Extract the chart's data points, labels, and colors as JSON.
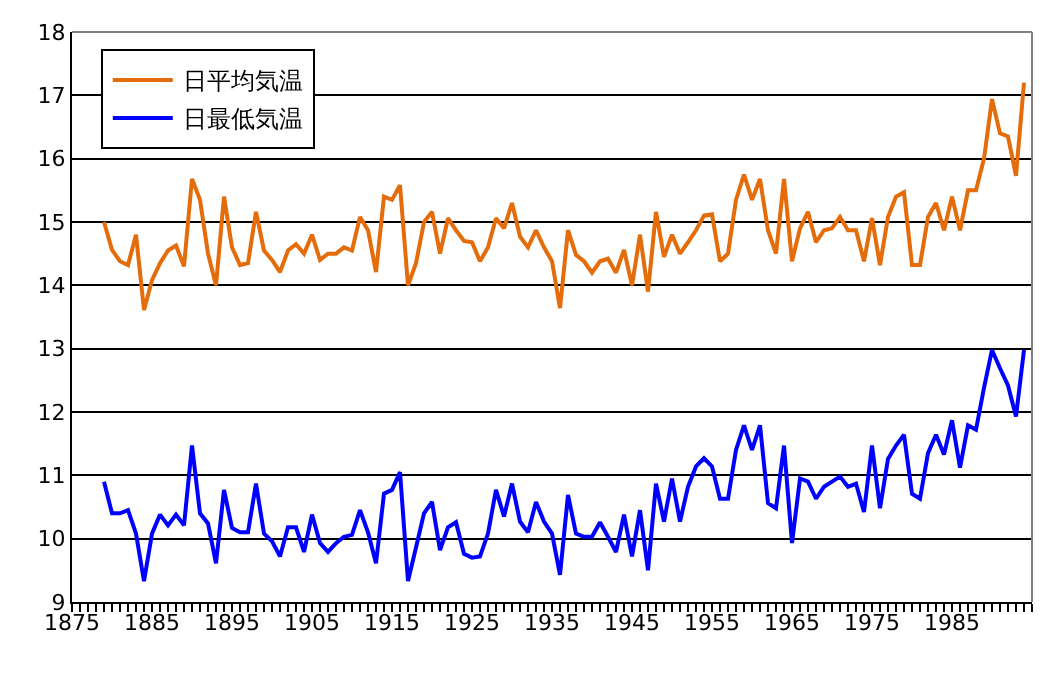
{
  "chart_data": {
    "type": "line",
    "x": [
      1879,
      1880,
      1881,
      1882,
      1883,
      1884,
      1885,
      1886,
      1887,
      1888,
      1889,
      1890,
      1891,
      1892,
      1893,
      1894,
      1895,
      1896,
      1897,
      1898,
      1899,
      1900,
      1901,
      1902,
      1903,
      1904,
      1905,
      1906,
      1907,
      1908,
      1909,
      1910,
      1911,
      1912,
      1913,
      1914,
      1915,
      1916,
      1917,
      1918,
      1919,
      1920,
      1921,
      1922,
      1923,
      1924,
      1925,
      1926,
      1927,
      1928,
      1929,
      1930,
      1931,
      1932,
      1933,
      1934,
      1935,
      1936,
      1937,
      1938,
      1939,
      1940,
      1941,
      1942,
      1943,
      1944,
      1945,
      1946,
      1947,
      1948,
      1949,
      1950,
      1951,
      1952,
      1953,
      1954,
      1955,
      1956,
      1957,
      1958,
      1959,
      1960,
      1961,
      1962,
      1963,
      1964,
      1965,
      1966,
      1967,
      1968,
      1969,
      1970,
      1971,
      1972,
      1973,
      1974,
      1975,
      1976,
      1977,
      1978,
      1979,
      1980,
      1981,
      1982,
      1983,
      1984,
      1985,
      1986,
      1987,
      1988,
      1989,
      1990,
      1991,
      1992,
      1993,
      1994
    ],
    "series": [
      {
        "name": "日平均気温",
        "color": "#e46c0a",
        "values": [
          15.0,
          14.56,
          14.38,
          14.32,
          14.8,
          13.61,
          14.08,
          14.35,
          14.55,
          14.63,
          14.3,
          15.68,
          15.35,
          14.5,
          14.0,
          15.4,
          14.6,
          14.32,
          14.35,
          15.16,
          14.55,
          14.4,
          14.21,
          14.55,
          14.65,
          14.5,
          14.8,
          14.4,
          14.5,
          14.5,
          14.6,
          14.55,
          15.08,
          14.87,
          14.21,
          15.4,
          15.35,
          15.58,
          14.0,
          14.35,
          15.0,
          15.16,
          14.5,
          15.06,
          14.87,
          14.7,
          14.68,
          14.38,
          14.6,
          15.06,
          14.9,
          15.3,
          14.77,
          14.6,
          14.87,
          14.6,
          14.38,
          13.64,
          14.87,
          14.48,
          14.38,
          14.2,
          14.38,
          14.42,
          14.2,
          14.56,
          14.0,
          14.8,
          13.9,
          15.16,
          14.45,
          14.8,
          14.5,
          14.68,
          14.87,
          15.1,
          15.12,
          14.38,
          14.5,
          15.35,
          15.75,
          15.35,
          15.68,
          14.87,
          14.5,
          15.68,
          14.38,
          14.9,
          15.16,
          14.68,
          14.87,
          14.9,
          15.08,
          14.87,
          14.87,
          14.38,
          15.06,
          14.32,
          15.08,
          15.4,
          15.47,
          14.32,
          14.32,
          15.08,
          15.3,
          14.87,
          15.4,
          14.87,
          15.5,
          15.5,
          16.0,
          16.94,
          16.4,
          16.35,
          15.73,
          17.2
        ]
      },
      {
        "name": "日最低気温",
        "color": "#0000ff",
        "values": [
          10.9,
          10.4,
          10.4,
          10.45,
          10.08,
          9.33,
          10.08,
          10.38,
          10.21,
          10.38,
          10.21,
          11.47,
          10.4,
          10.24,
          9.61,
          10.77,
          10.17,
          10.1,
          10.1,
          10.87,
          10.08,
          9.96,
          9.72,
          10.18,
          10.18,
          9.79,
          10.38,
          9.93,
          9.79,
          9.93,
          10.03,
          10.06,
          10.45,
          10.1,
          9.61,
          10.71,
          10.77,
          11.05,
          9.33,
          9.86,
          10.4,
          10.58,
          9.82,
          10.18,
          10.26,
          9.76,
          9.7,
          9.72,
          10.08,
          10.77,
          10.35,
          10.87,
          10.27,
          10.1,
          10.58,
          10.27,
          10.08,
          9.43,
          10.69,
          10.08,
          10.03,
          10.03,
          10.26,
          10.03,
          9.79,
          10.38,
          9.72,
          10.45,
          9.5,
          10.87,
          10.27,
          10.95,
          10.27,
          10.82,
          11.14,
          11.27,
          11.14,
          10.63,
          10.63,
          11.4,
          11.79,
          11.4,
          11.79,
          10.56,
          10.48,
          11.47,
          9.93,
          10.95,
          10.9,
          10.63,
          10.82,
          10.9,
          10.98,
          10.82,
          10.87,
          10.42,
          11.47,
          10.48,
          11.26,
          11.47,
          11.64,
          10.71,
          10.63,
          11.35,
          11.64,
          11.33,
          11.87,
          11.12,
          11.79,
          11.72,
          12.38,
          12.98,
          12.69,
          12.42,
          11.93,
          12.98
        ]
      }
    ],
    "xlim": [
      1875,
      1995
    ],
    "xticks": [
      1875,
      1885,
      1895,
      1905,
      1915,
      1925,
      1935,
      1945,
      1955,
      1965,
      1975,
      1985
    ],
    "ylim": [
      9,
      18
    ],
    "yticks": [
      9,
      10,
      11,
      12,
      13,
      14,
      15,
      16,
      17,
      18
    ],
    "grid": "y",
    "legend": "top left",
    "marker": "none",
    "line_style": "solid"
  }
}
